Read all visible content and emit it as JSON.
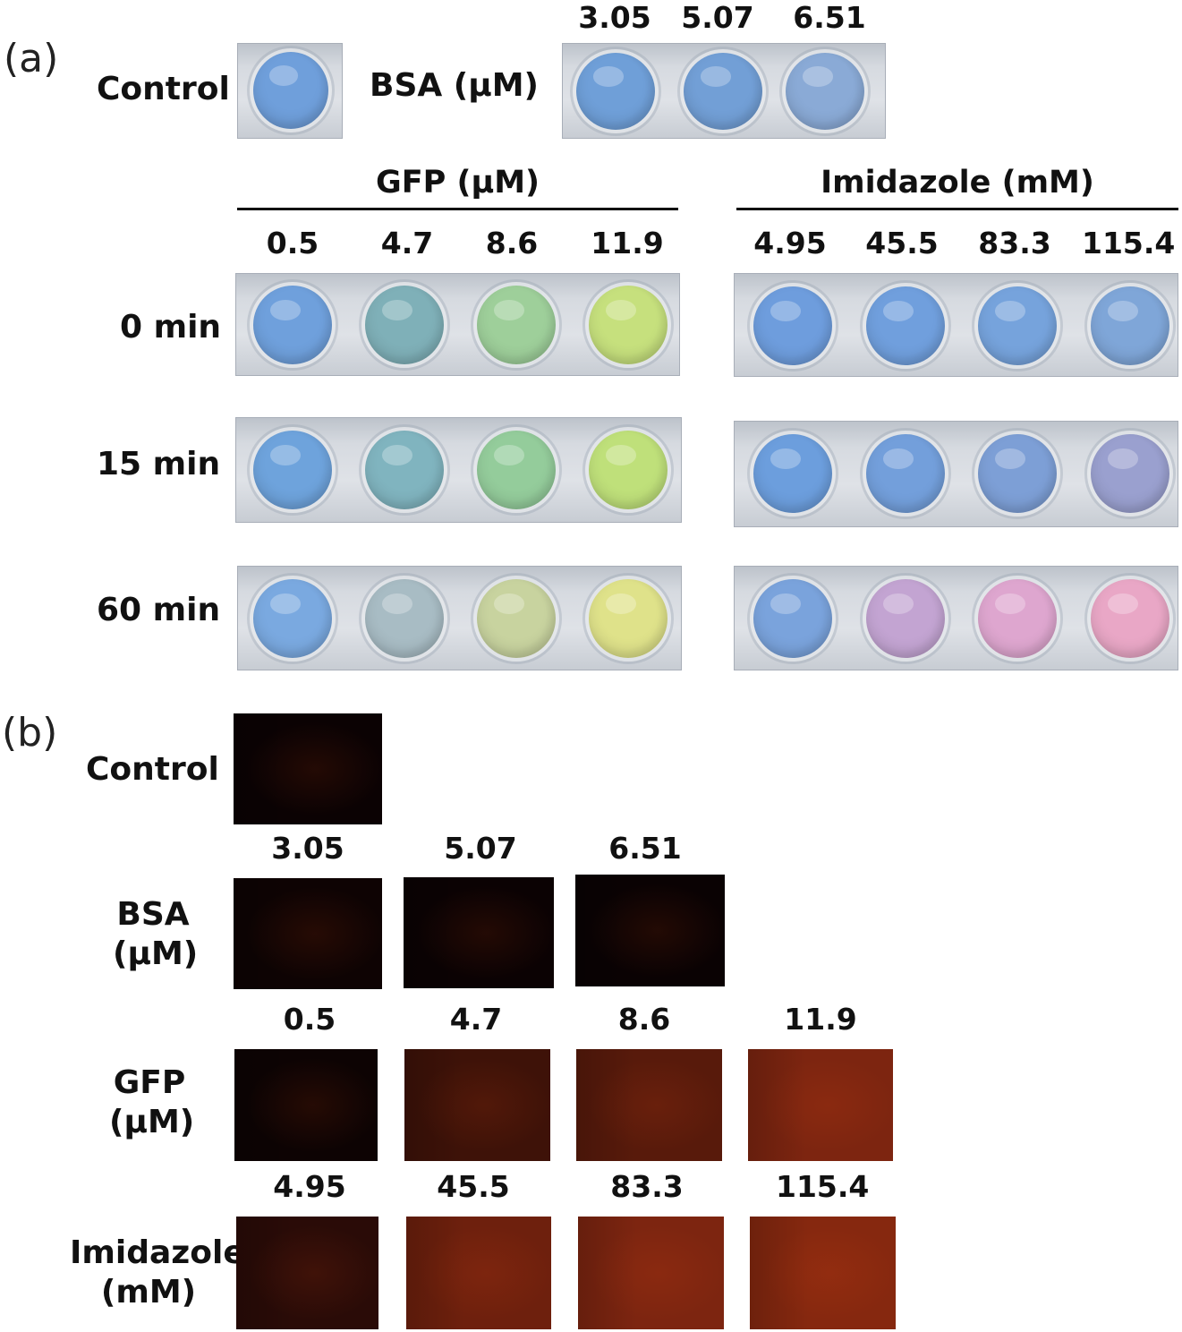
{
  "panel_a": {
    "label": "(a)",
    "control_label": "Control",
    "control_well_color": "#6f9fdb",
    "bsa_label": "BSA (μM)",
    "bsa_concentrations": [
      "3.05",
      "5.07",
      "6.51"
    ],
    "bsa_well_colors": [
      "#6f9fd8",
      "#729fd6",
      "#8aaad6"
    ],
    "gfp_header": "GFP (μM)",
    "gfp_concentrations": [
      "0.5",
      "4.7",
      "8.6",
      "11.9"
    ],
    "imidazole_header": "Imidazole (mM)",
    "imidazole_concentrations": [
      "4.95",
      "45.5",
      "83.3",
      "115.4"
    ],
    "time_labels": [
      "0 min",
      "15 min",
      "60 min"
    ],
    "gfp_well_colors": [
      [
        "#6fa0dc",
        "#7fb0b8",
        "#9ecf9a",
        "#c6e07d"
      ],
      [
        "#6ea3dc",
        "#80b4bf",
        "#94cc9b",
        "#bfe07a"
      ],
      [
        "#7aa9e0",
        "#a8bcc4",
        "#c8d39f",
        "#dfe28a"
      ]
    ],
    "imidazole_well_colors": [
      [
        "#6e9ddd",
        "#709fdd",
        "#76a3dc",
        "#7fa6d8"
      ],
      [
        "#6c9edd",
        "#739fdb",
        "#7d9fd6",
        "#9aa0cf"
      ],
      [
        "#7aa3dc",
        "#c3a4d2",
        "#dea6cf",
        "#e9a7c6"
      ]
    ]
  },
  "panel_b": {
    "label": "(b)",
    "control_label": "Control",
    "control_color": "#0b0203",
    "bsa_label_line1": "BSA",
    "bsa_label_line2": "(μM)",
    "bsa_concentrations": [
      "3.05",
      "5.07",
      "6.51"
    ],
    "bsa_colors": [
      "#0e0303",
      "#0b0203",
      "#0a0203"
    ],
    "gfp_label_line1": "GFP",
    "gfp_label_line2": "(μM)",
    "gfp_concentrations": [
      "0.5",
      "4.7",
      "8.6",
      "11.9"
    ],
    "gfp_colors": [
      "#0d0303",
      "#3e1208",
      "#581a0b",
      "#7d2510"
    ],
    "imidazole_label_line1": "Imidazole",
    "imidazole_label_line2": "(mM)",
    "imidazole_concentrations": [
      "4.95",
      "45.5",
      "83.3",
      "115.4"
    ],
    "imidazole_colors": [
      "#2a0b07",
      "#6e200d",
      "#7d2510",
      "#86280f"
    ]
  }
}
